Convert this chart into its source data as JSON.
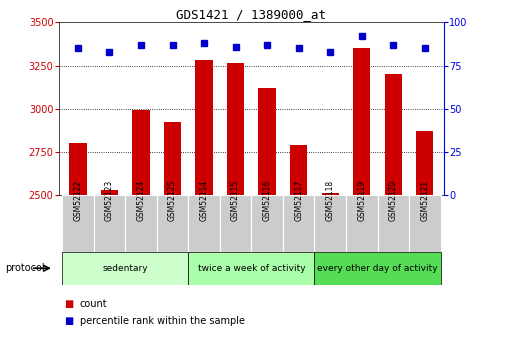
{
  "title": "GDS1421 / 1389000_at",
  "samples": [
    "GSM52122",
    "GSM52123",
    "GSM52124",
    "GSM52125",
    "GSM52114",
    "GSM52115",
    "GSM52116",
    "GSM52117",
    "GSM52118",
    "GSM52119",
    "GSM52120",
    "GSM52121"
  ],
  "counts": [
    2800,
    2530,
    2990,
    2920,
    3280,
    3265,
    3120,
    2790,
    2510,
    3350,
    3200,
    2870
  ],
  "percentiles": [
    85,
    83,
    87,
    87,
    88,
    86,
    87,
    85,
    83,
    92,
    87,
    85
  ],
  "ylim_left": [
    2500,
    3500
  ],
  "ylim_right": [
    0,
    100
  ],
  "yticks_left": [
    2500,
    2750,
    3000,
    3250,
    3500
  ],
  "yticks_right": [
    0,
    25,
    50,
    75,
    100
  ],
  "bar_color": "#CC0000",
  "dot_color": "#0000CC",
  "bg_color": "#CCCCCC",
  "groups": [
    {
      "label": "sedentary",
      "start": 0,
      "end": 4,
      "color": "#CCFFCC"
    },
    {
      "label": "twice a week of activity",
      "start": 4,
      "end": 8,
      "color": "#AAFFAA"
    },
    {
      "label": "every other day of activity",
      "start": 8,
      "end": 12,
      "color": "#55DD55"
    }
  ],
  "legend_items": [
    {
      "label": "count",
      "color": "#CC0000"
    },
    {
      "label": "percentile rank within the sample",
      "color": "#0000CC"
    }
  ],
  "protocol_label": "protocol"
}
